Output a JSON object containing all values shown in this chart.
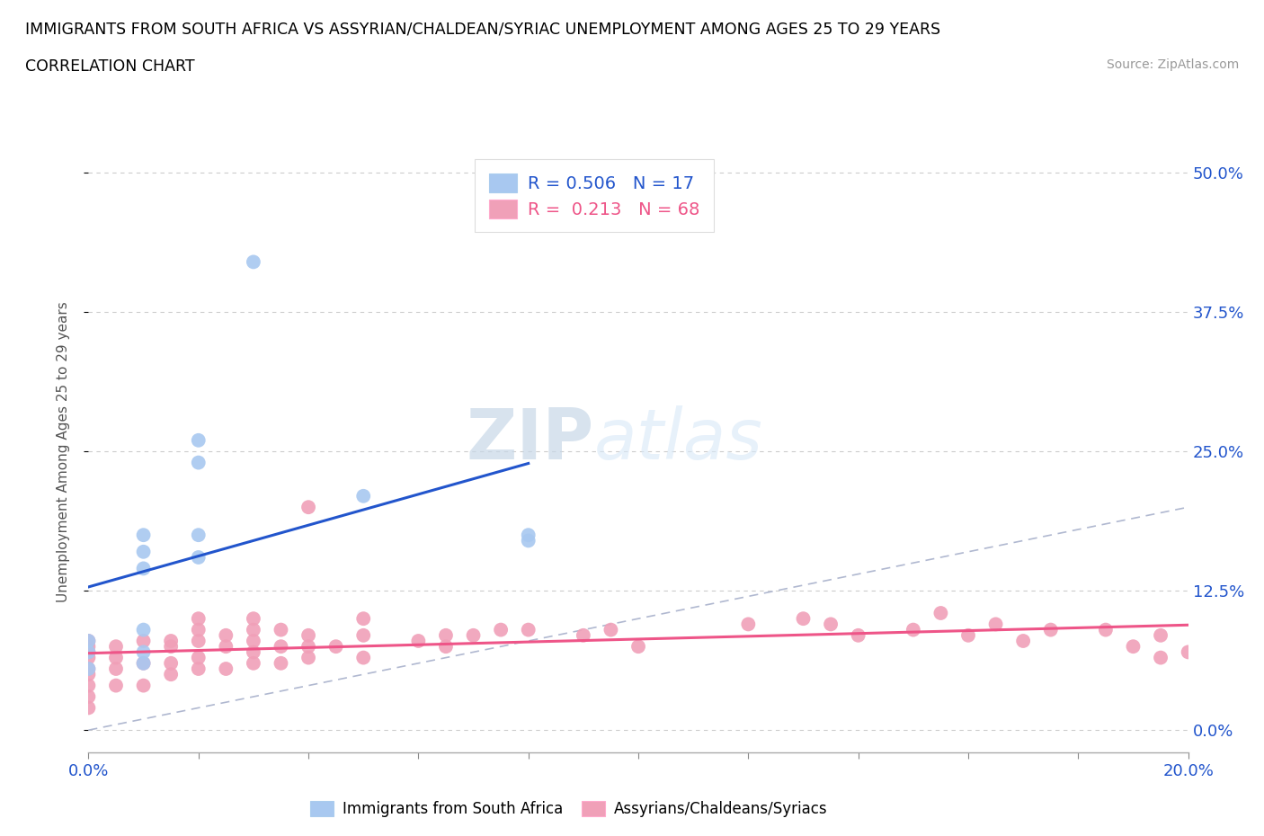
{
  "title_line1": "IMMIGRANTS FROM SOUTH AFRICA VS ASSYRIAN/CHALDEAN/SYRIAC UNEMPLOYMENT AMONG AGES 25 TO 29 YEARS",
  "title_line2": "CORRELATION CHART",
  "source": "Source: ZipAtlas.com",
  "ylabel_ticks": [
    "0.0%",
    "12.5%",
    "25.0%",
    "37.5%",
    "50.0%"
  ],
  "xlim": [
    0.0,
    0.2
  ],
  "ylim": [
    -0.02,
    0.52
  ],
  "ytick_positions": [
    0.0,
    0.125,
    0.25,
    0.375,
    0.5
  ],
  "xtick_positions": [
    0.0,
    0.02,
    0.04,
    0.06,
    0.08,
    0.1,
    0.12,
    0.14,
    0.16,
    0.18,
    0.2
  ],
  "xtick_label_positions": [
    0.0,
    0.2
  ],
  "xtick_labels": [
    "0.0%",
    "20.0%"
  ],
  "r_blue": "0.506",
  "n_blue": 17,
  "r_pink": "0.213",
  "n_pink": 68,
  "legend_label_blue": "Immigrants from South Africa",
  "legend_label_pink": "Assyrians/Chaldeans/Syriacs",
  "blue_color": "#a8c8f0",
  "pink_color": "#f0a0b8",
  "blue_line_color": "#2255cc",
  "pink_line_color": "#ee5588",
  "diagonal_color": "#b0b8d0",
  "watermark_zip": "ZIP",
  "watermark_atlas": "atlas",
  "blue_scatter_x": [
    0.0,
    0.0,
    0.0,
    0.01,
    0.01,
    0.01,
    0.01,
    0.01,
    0.01,
    0.02,
    0.02,
    0.02,
    0.02,
    0.03,
    0.05,
    0.08,
    0.08
  ],
  "blue_scatter_y": [
    0.055,
    0.07,
    0.08,
    0.06,
    0.07,
    0.09,
    0.145,
    0.16,
    0.175,
    0.155,
    0.175,
    0.24,
    0.26,
    0.42,
    0.21,
    0.17,
    0.175
  ],
  "pink_scatter_x": [
    0.0,
    0.0,
    0.0,
    0.0,
    0.0,
    0.0,
    0.0,
    0.0,
    0.0,
    0.005,
    0.005,
    0.005,
    0.005,
    0.01,
    0.01,
    0.01,
    0.015,
    0.015,
    0.015,
    0.015,
    0.02,
    0.02,
    0.02,
    0.02,
    0.02,
    0.025,
    0.025,
    0.025,
    0.03,
    0.03,
    0.03,
    0.03,
    0.03,
    0.035,
    0.035,
    0.035,
    0.04,
    0.04,
    0.04,
    0.04,
    0.045,
    0.05,
    0.05,
    0.05,
    0.06,
    0.065,
    0.065,
    0.07,
    0.075,
    0.08,
    0.09,
    0.095,
    0.1,
    0.12,
    0.13,
    0.135,
    0.14,
    0.15,
    0.155,
    0.16,
    0.165,
    0.17,
    0.175,
    0.185,
    0.19,
    0.195,
    0.195,
    0.2
  ],
  "pink_scatter_y": [
    0.02,
    0.03,
    0.04,
    0.05,
    0.055,
    0.065,
    0.07,
    0.075,
    0.08,
    0.04,
    0.055,
    0.065,
    0.075,
    0.04,
    0.06,
    0.08,
    0.05,
    0.06,
    0.075,
    0.08,
    0.055,
    0.065,
    0.08,
    0.09,
    0.1,
    0.055,
    0.075,
    0.085,
    0.06,
    0.07,
    0.08,
    0.09,
    0.1,
    0.06,
    0.075,
    0.09,
    0.065,
    0.075,
    0.085,
    0.2,
    0.075,
    0.065,
    0.085,
    0.1,
    0.08,
    0.075,
    0.085,
    0.085,
    0.09,
    0.09,
    0.085,
    0.09,
    0.075,
    0.095,
    0.1,
    0.095,
    0.085,
    0.09,
    0.105,
    0.085,
    0.095,
    0.08,
    0.09,
    0.09,
    0.075,
    0.065,
    0.085,
    0.07
  ]
}
